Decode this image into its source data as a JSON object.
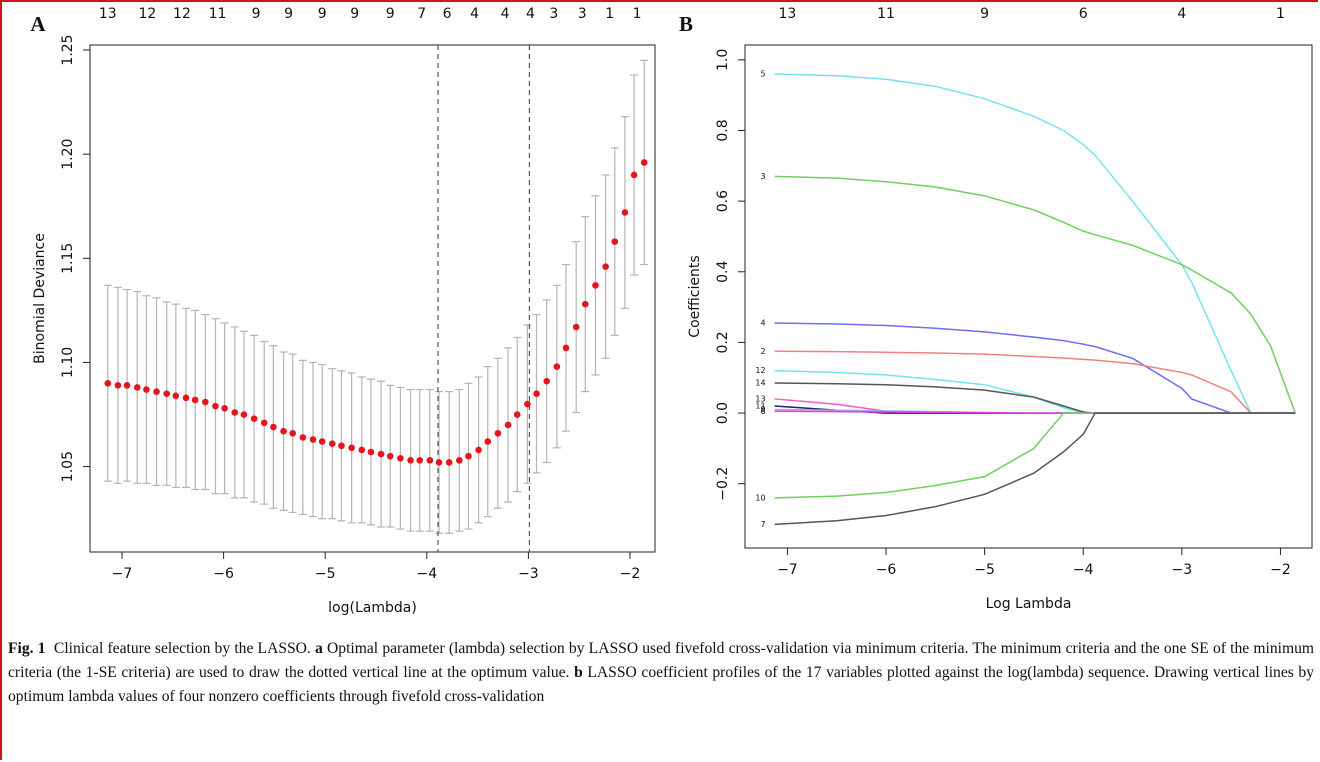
{
  "chart_data": [
    {
      "type": "errorbar",
      "panel_label": "A",
      "ylabel": "Binomial Deviance",
      "xlabel": "log(Lambda)",
      "color": "#e8141c",
      "error_color": "#b4b4b4",
      "vline_color": "#555555",
      "x": [
        -7.14,
        -7.04,
        -6.95,
        -6.85,
        -6.76,
        -6.66,
        -6.56,
        -6.47,
        -6.37,
        -6.28,
        -6.18,
        -6.08,
        -5.99,
        -5.89,
        -5.8,
        -5.7,
        -5.6,
        -5.51,
        -5.41,
        -5.32,
        -5.22,
        -5.12,
        -5.03,
        -4.93,
        -4.84,
        -4.74,
        -4.64,
        -4.55,
        -4.45,
        -4.36,
        -4.26,
        -4.16,
        -4.07,
        -3.97,
        -3.88,
        -3.78,
        -3.68,
        -3.59,
        -3.49,
        -3.4,
        -3.3,
        -3.2,
        -3.11,
        -3.01,
        -2.92,
        -2.82,
        -2.72,
        -2.63,
        -2.53,
        -2.44,
        -2.34,
        -2.24,
        -2.15,
        -2.05,
        -1.96,
        -1.86
      ],
      "values": [
        1.09,
        1.089,
        1.089,
        1.088,
        1.087,
        1.086,
        1.085,
        1.084,
        1.083,
        1.082,
        1.081,
        1.079,
        1.078,
        1.076,
        1.075,
        1.073,
        1.071,
        1.069,
        1.067,
        1.066,
        1.064,
        1.063,
        1.062,
        1.061,
        1.06,
        1.059,
        1.058,
        1.057,
        1.056,
        1.055,
        1.054,
        1.053,
        1.053,
        1.053,
        1.052,
        1.052,
        1.053,
        1.055,
        1.058,
        1.062,
        1.066,
        1.07,
        1.075,
        1.08,
        1.085,
        1.091,
        1.098,
        1.107,
        1.117,
        1.128,
        1.137,
        1.146,
        1.158,
        1.172,
        1.19,
        1.196
      ],
      "errors": [
        0.047,
        0.047,
        0.046,
        0.046,
        0.045,
        0.045,
        0.044,
        0.044,
        0.043,
        0.043,
        0.042,
        0.042,
        0.041,
        0.041,
        0.04,
        0.04,
        0.039,
        0.039,
        0.038,
        0.038,
        0.037,
        0.037,
        0.037,
        0.036,
        0.036,
        0.036,
        0.035,
        0.035,
        0.035,
        0.034,
        0.034,
        0.034,
        0.034,
        0.034,
        0.034,
        0.034,
        0.034,
        0.035,
        0.035,
        0.036,
        0.036,
        0.037,
        0.037,
        0.038,
        0.038,
        0.039,
        0.039,
        0.04,
        0.041,
        0.042,
        0.043,
        0.044,
        0.045,
        0.046,
        0.048,
        0.049
      ],
      "vlines": [
        -3.89,
        -2.99
      ],
      "xlim": [
        -7.315,
        -1.754
      ],
      "ylim": [
        1.009,
        1.2524
      ],
      "xticks": [
        {
          "value": -7,
          "label": "−7"
        },
        {
          "value": -6,
          "label": "−6"
        },
        {
          "value": -5,
          "label": "−5"
        },
        {
          "value": -4,
          "label": "−4"
        },
        {
          "value": -3,
          "label": "−3"
        },
        {
          "value": -2,
          "label": "−2"
        }
      ],
      "yticks": [
        1.05,
        {
          "value": 1.1,
          "label": "1.10"
        },
        1.15,
        {
          "value": 1.2,
          "label": "1.20"
        },
        1.25
      ],
      "x2ticks": [
        {
          "value": -7.14,
          "label": "13"
        },
        {
          "value": -6.75,
          "label": "12"
        },
        {
          "value": -6.41,
          "label": "12"
        },
        {
          "value": -6.06,
          "label": "11"
        },
        {
          "value": -5.68,
          "label": "9"
        },
        {
          "value": -5.36,
          "label": "9"
        },
        {
          "value": -5.03,
          "label": "9"
        },
        {
          "value": -4.71,
          "label": "9"
        },
        {
          "value": -4.36,
          "label": "9"
        },
        {
          "value": -4.05,
          "label": "7"
        },
        {
          "value": -3.8,
          "label": "6"
        },
        {
          "value": -3.53,
          "label": "4"
        },
        {
          "value": -3.23,
          "label": "4"
        },
        {
          "value": -2.98,
          "label": "4"
        },
        {
          "value": -2.75,
          "label": "3"
        },
        {
          "value": -2.47,
          "label": "3"
        },
        {
          "value": -2.2,
          "label": "1"
        },
        {
          "value": -1.93,
          "label": "1"
        }
      ]
    },
    {
      "type": "line",
      "panel_label": "B",
      "ylabel": "Coefficients",
      "xlabel": "Log Lambda",
      "x": [
        -7.13,
        -6.5,
        -6,
        -5.5,
        -5,
        -4.5,
        -4.2,
        -4,
        -3.88,
        -3.5,
        -3,
        -2.9,
        -2.5,
        -2.3,
        -2.1,
        -1.85
      ],
      "series": [
        {
          "name": "5",
          "color": "#74e4ec",
          "values": [
            0.96,
            0.955,
            0.945,
            0.925,
            0.89,
            0.84,
            0.8,
            0.76,
            0.73,
            0.6,
            0.42,
            0.37,
            0.12,
            0,
            0,
            0
          ]
        },
        {
          "name": "3",
          "color": "#6fcf5f",
          "values": [
            0.67,
            0.665,
            0.655,
            0.64,
            0.615,
            0.575,
            0.54,
            0.515,
            0.505,
            0.475,
            0.42,
            0.405,
            0.34,
            0.28,
            0.19,
            0
          ]
        },
        {
          "name": "4",
          "color": "#6b6ff0",
          "values": [
            0.255,
            0.252,
            0.248,
            0.24,
            0.23,
            0.215,
            0.205,
            0.195,
            0.188,
            0.155,
            0.07,
            0.04,
            0,
            0,
            0,
            0
          ]
        },
        {
          "name": "2",
          "color": "#f08080",
          "values": [
            0.175,
            0.174,
            0.172,
            0.17,
            0.167,
            0.16,
            0.156,
            0.152,
            0.15,
            0.14,
            0.115,
            0.108,
            0.06,
            0,
            0,
            0
          ]
        },
        {
          "name": "12",
          "color": "#74e4ec",
          "values": [
            0.12,
            0.115,
            0.108,
            0.095,
            0.08,
            0.045,
            0.015,
            0,
            0,
            0,
            0,
            0,
            0,
            0,
            0,
            0
          ]
        },
        {
          "name": "14",
          "color": "#555555",
          "values": [
            0.085,
            0.083,
            0.08,
            0.074,
            0.065,
            0.045,
            0.02,
            0.003,
            0,
            0,
            0,
            0,
            0,
            0,
            0,
            0
          ]
        },
        {
          "name": "13",
          "color": "#f05acb",
          "values": [
            0.04,
            0.025,
            0.005,
            0,
            0,
            0,
            0,
            0,
            0,
            0,
            0,
            0,
            0,
            0,
            0,
            0
          ]
        },
        {
          "name": "11",
          "color": "#202070",
          "values": [
            0.02,
            0.008,
            0,
            0,
            0,
            0,
            0,
            0,
            0,
            0,
            0,
            0,
            0,
            0,
            0,
            0
          ]
        },
        {
          "name": "9",
          "color": "#b0a0e0",
          "values": [
            0.01,
            0.008,
            0.006,
            0.004,
            0.002,
            0,
            0,
            0,
            0,
            0,
            0,
            0,
            0,
            0,
            0,
            0
          ]
        },
        {
          "name": "6",
          "color": "#e040e0",
          "values": [
            0.005,
            0.004,
            0.003,
            0.002,
            0.001,
            0,
            0,
            0,
            0,
            0,
            0,
            0,
            0,
            0,
            0,
            0
          ]
        },
        {
          "name": "10",
          "color": "#6fcf5f",
          "values": [
            -0.24,
            -0.235,
            -0.225,
            -0.205,
            -0.18,
            -0.1,
            0,
            0,
            0,
            0,
            0,
            0,
            0,
            0,
            0,
            0
          ]
        },
        {
          "name": "7",
          "color": "#555555",
          "values": [
            -0.315,
            -0.305,
            -0.29,
            -0.265,
            -0.23,
            -0.17,
            -0.11,
            -0.06,
            0,
            0,
            0,
            0,
            0,
            0,
            0,
            0
          ]
        }
      ],
      "xlim": [
        -7.43,
        -1.68
      ],
      "ylim": [
        -0.382,
        1.042
      ],
      "xticks": [
        {
          "value": -7,
          "label": "−7"
        },
        {
          "value": -6,
          "label": "−6"
        },
        {
          "value": -5,
          "label": "−5"
        },
        {
          "value": -4,
          "label": "−4"
        },
        {
          "value": -3,
          "label": "−3"
        },
        {
          "value": -2,
          "label": "−2"
        }
      ],
      "yticks": [
        {
          "value": -0.2,
          "label": "−0.2"
        },
        {
          "value": 0,
          "label": "0.0"
        },
        0.2,
        0.4,
        0.6,
        0.8,
        {
          "value": 1,
          "label": "1.0"
        }
      ],
      "x2ticks": [
        {
          "value": -7,
          "label": "13"
        },
        {
          "value": -6,
          "label": "11"
        },
        {
          "value": -5,
          "label": "9"
        },
        {
          "value": -4,
          "label": "6"
        },
        {
          "value": -3,
          "label": "4"
        },
        {
          "value": -2,
          "label": "1"
        }
      ]
    }
  ],
  "caption": {
    "label": "Fig. 1",
    "intro": "Clinical feature selection by the LASSO.",
    "a_label": "a",
    "a_text": "Optimal parameter (lambda) selection by LASSO used fivefold cross-validation via minimum criteria. The minimum criteria and the one SE of the minimum criteria (the 1-SE criteria) are used to draw the dotted vertical line at the optimum value.",
    "b_label": "b",
    "b_text": "LASSO coefficient profiles of the 17 variables plotted against the log(lambda) sequence. Drawing vertical lines by optimum lambda values of four nonzero coefficients through fivefold cross-validation"
  }
}
